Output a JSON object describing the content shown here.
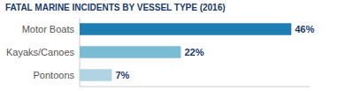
{
  "chart_data": {
    "type": "bar",
    "orientation": "horizontal",
    "title": "FATAL MARINE INCIDENTS BY VESSEL TYPE (2016)",
    "categories": [
      "Motor Boats",
      "Kayaks/Canoes",
      "Pontoons"
    ],
    "values": [
      46,
      22,
      7
    ],
    "value_labels": [
      "46%",
      "22%",
      "7%"
    ],
    "colors": [
      "#1e7eb4",
      "#7bbcd5",
      "#b0d4e3"
    ],
    "xlim": [
      0,
      50
    ],
    "data_labels": true,
    "tick_labels": "y",
    "grid": false
  }
}
